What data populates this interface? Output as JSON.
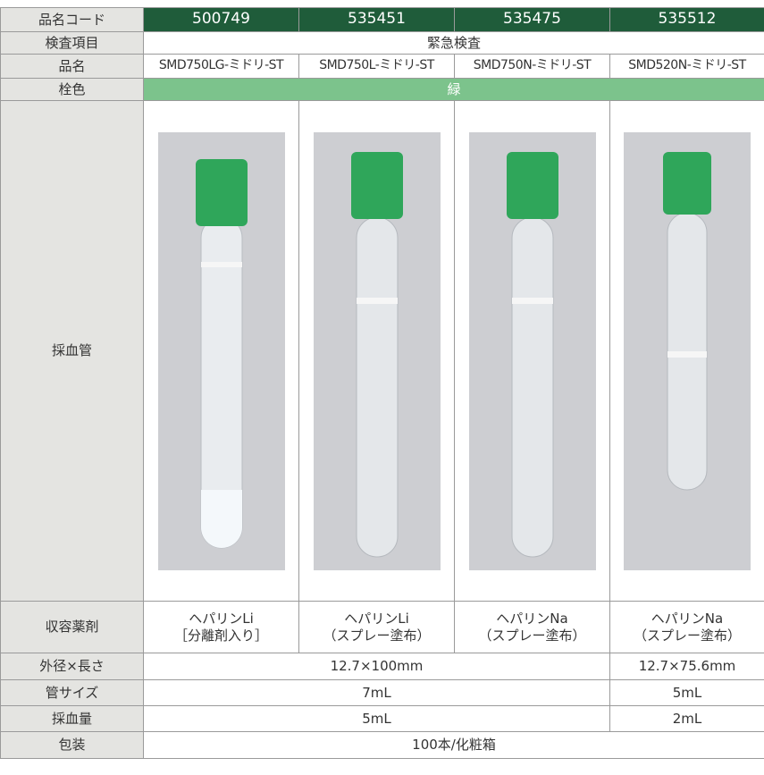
{
  "table": {
    "header": [
      "品名コード",
      "500749",
      "535451",
      "535475",
      "535512"
    ],
    "rows": [
      {
        "label": "検査項目",
        "cells": [
          "緊急検査"
        ]
      },
      {
        "label": "品名",
        "cells": [
          "SMD750LG-ミドリ-ST",
          "SMD750L-ミドリ-ST",
          "SMD750N-ミドリ-ST",
          "SMD520N-ミドリ-ST"
        ]
      },
      {
        "label": "栓色",
        "cells": [
          "緑"
        ]
      },
      {
        "label": "採血管",
        "cells": []
      },
      {
        "label": "収容薬剤",
        "cells": [
          [
            "ヘパリンLi",
            "［分離剤入り］"
          ],
          [
            "ヘパリンLi",
            "（スプレー塗布）"
          ],
          [
            "ヘパリンNa",
            "（スプレー塗布）"
          ],
          [
            "ヘパリンNa",
            "（スプレー塗布）"
          ]
        ]
      },
      {
        "label": "外径×長さ",
        "cells": [
          "12.7×100mm",
          "12.7×75.6mm"
        ]
      },
      {
        "label": "管サイズ",
        "cells": [
          "7mL",
          "5mL"
        ]
      },
      {
        "label": "採血量",
        "cells": [
          "5mL",
          "2mL"
        ]
      },
      {
        "label": "包装",
        "cells": [
          "100本/化粧箱"
        ]
      }
    ]
  }
}
